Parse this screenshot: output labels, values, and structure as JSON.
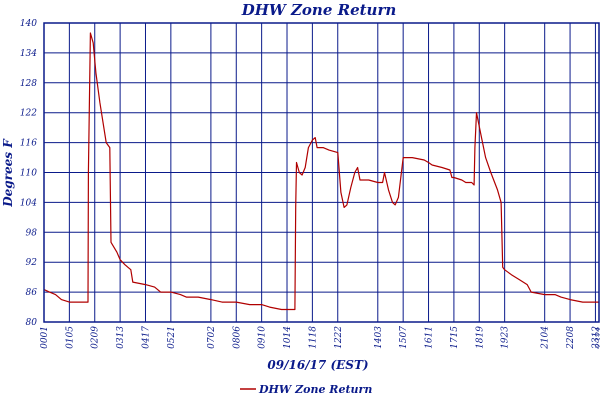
{
  "chart_data": {
    "type": "line",
    "title": "DHW Zone Return",
    "xlabel": "09/16/17 (EST)",
    "ylabel": "Degrees F",
    "ylim": [
      80,
      140
    ],
    "yticks": [
      80,
      86,
      92,
      98,
      104,
      110,
      116,
      122,
      128,
      134,
      140
    ],
    "xlim": [
      "00:01",
      "23:21"
    ],
    "xticks": [
      "0001",
      "0105",
      "0209",
      "0313",
      "0417",
      "0521",
      "0702",
      "0806",
      "0910",
      "1014",
      "1118",
      "1222",
      "1403",
      "1507",
      "1611",
      "1715",
      "1819",
      "1923",
      "2104",
      "2208",
      "2312",
      "2321"
    ],
    "grid": true,
    "legend_position": "bottom-center",
    "colors": {
      "series": "#b00000",
      "grid": "#0a1a8a",
      "text": "#0a1a8a"
    },
    "series": [
      {
        "name": "DHW Zone Return",
        "points": [
          [
            "00:01",
            86.5
          ],
          [
            "00:15",
            86.0
          ],
          [
            "00:30",
            85.5
          ],
          [
            "00:45",
            84.5
          ],
          [
            "01:05",
            84.0
          ],
          [
            "01:30",
            84.0
          ],
          [
            "01:52",
            84.0
          ],
          [
            "01:53",
            110.0
          ],
          [
            "01:58",
            138.0
          ],
          [
            "02:05",
            136.0
          ],
          [
            "02:12",
            130.0
          ],
          [
            "02:22",
            124.0
          ],
          [
            "02:38",
            116.0
          ],
          [
            "02:47",
            115.0
          ],
          [
            "02:50",
            96.0
          ],
          [
            "03:05",
            94.0
          ],
          [
            "03:13",
            92.5
          ],
          [
            "03:25",
            91.5
          ],
          [
            "03:40",
            90.5
          ],
          [
            "03:45",
            88.0
          ],
          [
            "04:17",
            87.5
          ],
          [
            "04:40",
            87.0
          ],
          [
            "04:55",
            86.0
          ],
          [
            "05:21",
            86.0
          ],
          [
            "05:45",
            85.5
          ],
          [
            "06:00",
            85.0
          ],
          [
            "06:30",
            85.0
          ],
          [
            "07:02",
            84.5
          ],
          [
            "07:30",
            84.0
          ],
          [
            "08:06",
            84.0
          ],
          [
            "08:40",
            83.5
          ],
          [
            "09:10",
            83.5
          ],
          [
            "09:30",
            83.0
          ],
          [
            "10:00",
            82.5
          ],
          [
            "10:30",
            82.5
          ],
          [
            "10:34",
            82.5
          ],
          [
            "10:36",
            103.0
          ],
          [
            "10:38",
            112.0
          ],
          [
            "10:45",
            110.0
          ],
          [
            "10:52",
            109.5
          ],
          [
            "11:00",
            111.0
          ],
          [
            "11:08",
            115.0
          ],
          [
            "11:18",
            116.5
          ],
          [
            "11:25",
            117.0
          ],
          [
            "11:30",
            115.0
          ],
          [
            "11:45",
            115.0
          ],
          [
            "12:00",
            114.5
          ],
          [
            "12:22",
            114.0
          ],
          [
            "12:30",
            106.0
          ],
          [
            "12:38",
            103.0
          ],
          [
            "12:45",
            103.5
          ],
          [
            "12:55",
            107.0
          ],
          [
            "13:05",
            110.0
          ],
          [
            "13:12",
            111.0
          ],
          [
            "13:18",
            108.5
          ],
          [
            "13:40",
            108.5
          ],
          [
            "14:03",
            108.0
          ],
          [
            "14:15",
            108.0
          ],
          [
            "14:20",
            110.0
          ],
          [
            "14:30",
            106.5
          ],
          [
            "14:40",
            104.0
          ],
          [
            "14:47",
            103.5
          ],
          [
            "14:55",
            105.0
          ],
          [
            "15:07",
            113.0
          ],
          [
            "15:30",
            113.0
          ],
          [
            "16:00",
            112.5
          ],
          [
            "16:11",
            112.0
          ],
          [
            "16:20",
            111.5
          ],
          [
            "16:45",
            111.0
          ],
          [
            "17:05",
            110.5
          ],
          [
            "17:10",
            109.0
          ],
          [
            "17:15",
            109.0
          ],
          [
            "17:35",
            108.5
          ],
          [
            "17:45",
            108.0
          ],
          [
            "18:00",
            108.0
          ],
          [
            "18:06",
            107.5
          ],
          [
            "18:08",
            115.0
          ],
          [
            "18:12",
            122.0
          ],
          [
            "18:22",
            118.0
          ],
          [
            "18:35",
            113.0
          ],
          [
            "18:48",
            110.0
          ],
          [
            "19:05",
            106.5
          ],
          [
            "19:14",
            104.0
          ],
          [
            "19:18",
            91.0
          ],
          [
            "19:23",
            90.5
          ],
          [
            "19:40",
            89.5
          ],
          [
            "20:00",
            88.5
          ],
          [
            "20:20",
            87.5
          ],
          [
            "20:30",
            86.0
          ],
          [
            "21:04",
            85.5
          ],
          [
            "21:30",
            85.5
          ],
          [
            "21:45",
            85.0
          ],
          [
            "22:08",
            84.5
          ],
          [
            "22:40",
            84.0
          ],
          [
            "23:12",
            84.0
          ],
          [
            "23:21",
            84.0
          ]
        ]
      }
    ]
  }
}
